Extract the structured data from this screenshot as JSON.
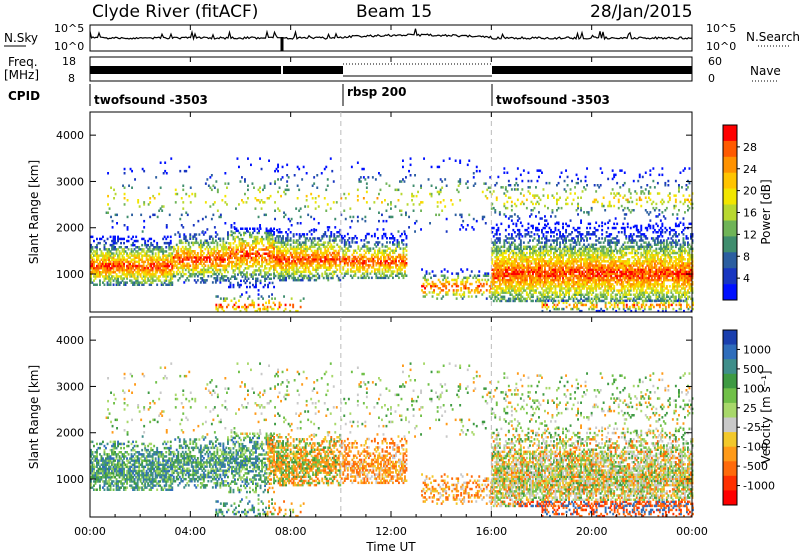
{
  "header": {
    "station": "Clyde River (fitACF)",
    "beam": "Beam 15",
    "date": "28/Jan/2015"
  },
  "strip_labels": {
    "nsky": "N.Sky",
    "nsky_ticks": [
      "10^5",
      "10^0"
    ],
    "nsearch": "N.Search",
    "nsearch_ticks": [
      "10^5",
      "10^0"
    ],
    "freq": "Freq.",
    "freq_unit": "[MHz]",
    "freq_ticks": [
      "18",
      "8"
    ],
    "nave": "Nave",
    "nave_ticks": [
      "60",
      "0"
    ],
    "cpid": "CPID"
  },
  "cpid_segments": [
    {
      "label": "twofsound -3503",
      "start_hour": 0,
      "end_hour": 10
    },
    {
      "label": "rbsp 200",
      "start_hour": 10,
      "end_hour": 16
    },
    {
      "label": "twofsound -3503",
      "start_hour": 16,
      "end_hour": 24
    }
  ],
  "chart_data": {
    "type": "heatmap",
    "xlabel": "Time UT",
    "x_tick_labels": [
      "00:00",
      "04:00",
      "08:00",
      "12:00",
      "16:00",
      "20:00",
      "00:00"
    ],
    "x_range_hours": [
      0,
      24
    ],
    "ylabel": "Slant Range [km]",
    "ylim_km": [
      180,
      4500
    ],
    "y_ticks": [
      1000,
      2000,
      3000,
      4000
    ],
    "mode_change_hours": [
      10,
      16
    ],
    "panels": [
      {
        "name": "power",
        "colorbar_label": "Power [dB]",
        "colorbar_ticks": [
          "28",
          "24",
          "20",
          "16",
          "12",
          "8",
          "4"
        ],
        "colors": [
          "#ff0000",
          "#ff5a00",
          "#ff9200",
          "#ffc400",
          "#f2e600",
          "#b8d830",
          "#6fb458",
          "#3f8d6e",
          "#2b5ea0",
          "#1836c0",
          "#0010ff"
        ]
      },
      {
        "name": "velocity",
        "colorbar_label": "Velocity [m s⁻¹]",
        "colorbar_ticks": [
          "1000",
          "500",
          "100",
          "25",
          "-25",
          "-100",
          "-500",
          "-1000"
        ],
        "colors": [
          "#1a3fae",
          "#2f6dbb",
          "#3f8e8a",
          "#3e9a42",
          "#70c048",
          "#a8d86a",
          "#c9c9c9",
          "#f2c82a",
          "#ff9a18",
          "#ff6a0a",
          "#ff3000",
          "#ff0000"
        ]
      }
    ]
  }
}
